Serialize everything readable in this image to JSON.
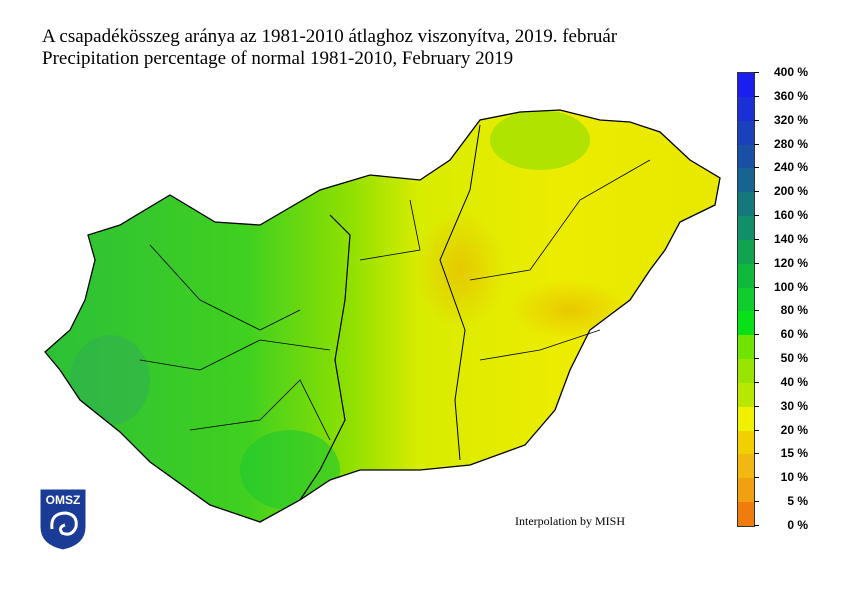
{
  "title_hu": "A csapadékösszeg aránya az 1981-2010 átlaghoz viszonyítva, 2019. február",
  "title_en": "Precipitation percentage of normal 1981-2010, February 2019",
  "credit": "Interpolation by MISH",
  "logo_text": "OMSZ",
  "legend": {
    "labels": [
      "400 %",
      "360 %",
      "320 %",
      "280 %",
      "240 %",
      "200 %",
      "160 %",
      "140 %",
      "120 %",
      "100 %",
      "80 %",
      "60 %",
      "50 %",
      "40 %",
      "30 %",
      "20 %",
      "15 %",
      "10 %",
      "5 %",
      "0 %"
    ],
    "colors_top_to_bottom": [
      "#1a1ef0",
      "#1a30d4",
      "#1a40bc",
      "#1a50a4",
      "#186490",
      "#14787c",
      "#109068",
      "#10a450",
      "#10b83c",
      "#10cc2c",
      "#08e018",
      "#70e400",
      "#98e400",
      "#b8e800",
      "#f0f000",
      "#f0d000",
      "#f0b810",
      "#f0a010",
      "#f07c10"
    ]
  },
  "colors": {
    "west": "#30c830",
    "center": "#90e000",
    "east": "#e8e800",
    "hotspot": "#e8c000"
  }
}
